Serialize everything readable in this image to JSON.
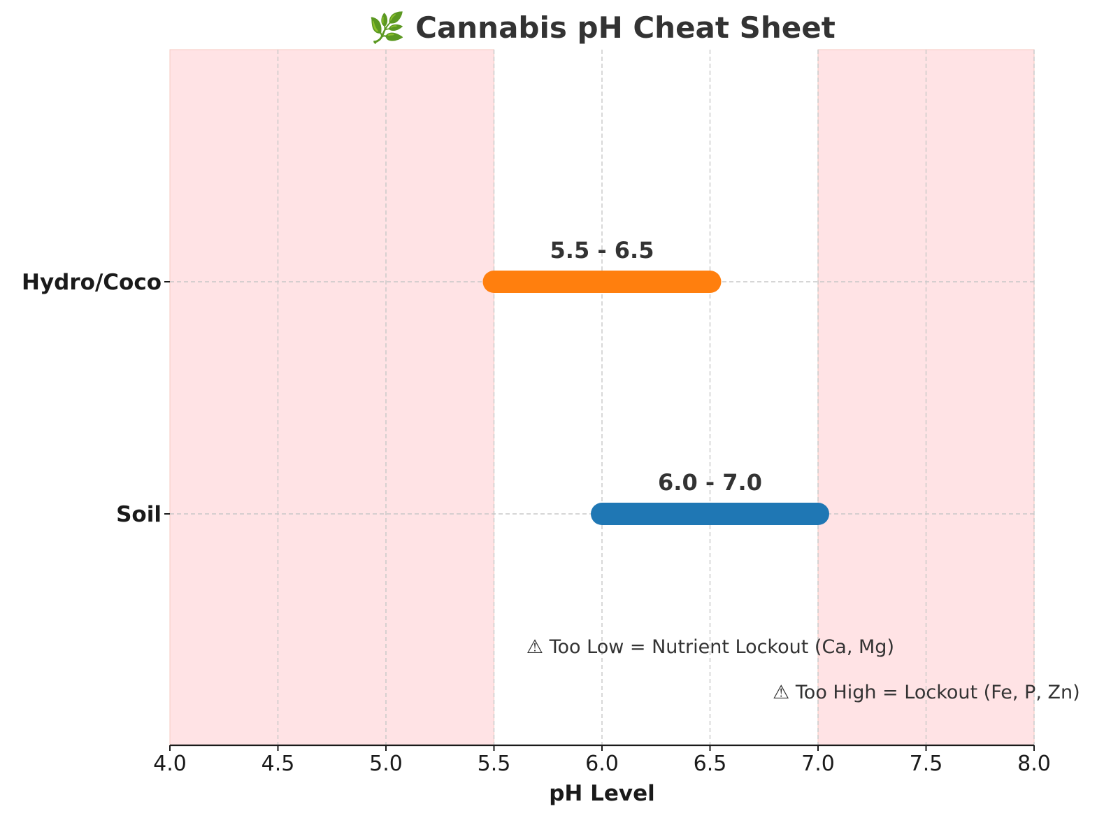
{
  "chart_data": {
    "type": "bar",
    "orientation": "horizontal-range",
    "title": "🌿 Cannabis pH Cheat Sheet",
    "xlabel": "pH Level",
    "ylabel": "",
    "xlim": [
      4.0,
      8.0
    ],
    "xticks": [
      "4.0",
      "4.5",
      "5.0",
      "5.5",
      "6.0",
      "6.5",
      "7.0",
      "7.5",
      "8.0"
    ],
    "grid": true,
    "categories": [
      "Soil",
      "Hydro/Coco"
    ],
    "ranges": [
      {
        "category": "Soil",
        "start": 6.0,
        "end": 7.0,
        "label": "6.0 - 7.0",
        "color": "#1f77b4"
      },
      {
        "category": "Hydro/Coco",
        "start": 5.5,
        "end": 6.5,
        "label": "5.5 - 6.5",
        "color": "#ff7f0e"
      }
    ],
    "danger_zones": [
      {
        "start": 4.0,
        "end": 5.5,
        "color": "#ffe3e5"
      },
      {
        "start": 7.0,
        "end": 8.0,
        "color": "#ffe3e5"
      }
    ],
    "annotations": [
      {
        "text": "⚠ Too Low = Nutrient Lockout (Ca, Mg)",
        "x": 5.65
      },
      {
        "text": "⚠ Too High = Lockout (Fe, P, Zn)",
        "x": 6.79
      }
    ]
  }
}
